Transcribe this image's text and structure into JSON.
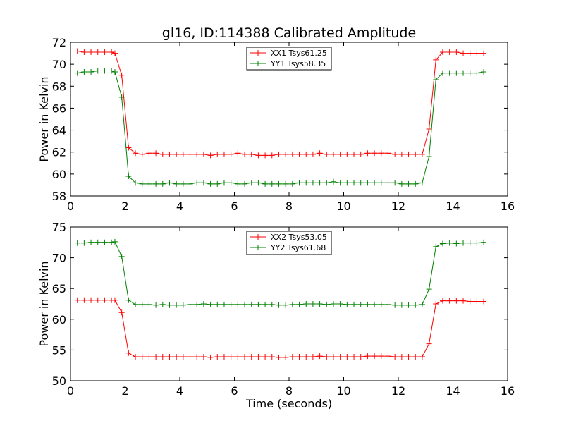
{
  "figure": {
    "title": "gl16, ID:114388 Calibrated Amplitude"
  },
  "chart_data": [
    {
      "type": "line",
      "title": "gl16, ID:114388 Calibrated Amplitude",
      "xlabel": "",
      "ylabel": "Power in Kelvin",
      "xlim": [
        0,
        16
      ],
      "ylim": [
        58,
        72
      ],
      "xticks": [
        0,
        2,
        4,
        6,
        8,
        10,
        12,
        14,
        16
      ],
      "yticks": [
        58,
        60,
        62,
        64,
        66,
        68,
        70,
        72
      ],
      "legend_position": "top-center",
      "x": [
        0.25,
        0.5,
        0.75,
        1.0,
        1.25,
        1.5,
        1.625,
        1.875,
        2.125,
        2.375,
        2.625,
        2.875,
        3.125,
        3.375,
        3.625,
        3.875,
        4.125,
        4.375,
        4.625,
        4.875,
        5.125,
        5.375,
        5.625,
        5.875,
        6.125,
        6.375,
        6.625,
        6.875,
        7.125,
        7.375,
        7.625,
        7.875,
        8.125,
        8.375,
        8.625,
        8.875,
        9.125,
        9.375,
        9.625,
        9.875,
        10.125,
        10.375,
        10.625,
        10.875,
        11.125,
        11.375,
        11.625,
        11.875,
        12.125,
        12.375,
        12.625,
        12.875,
        13.125,
        13.375,
        13.625,
        13.875,
        14.125,
        14.375,
        14.625,
        14.875,
        15.125
      ],
      "series": [
        {
          "name": "XX1 Tsys61.25",
          "color": "#ff0000",
          "values": [
            71.2,
            71.1,
            71.1,
            71.1,
            71.1,
            71.1,
            71.0,
            69.0,
            62.4,
            61.9,
            61.8,
            61.9,
            61.9,
            61.8,
            61.8,
            61.8,
            61.8,
            61.8,
            61.8,
            61.8,
            61.7,
            61.8,
            61.8,
            61.8,
            61.9,
            61.8,
            61.8,
            61.7,
            61.7,
            61.7,
            61.8,
            61.8,
            61.8,
            61.8,
            61.8,
            61.8,
            61.9,
            61.8,
            61.8,
            61.8,
            61.8,
            61.8,
            61.8,
            61.9,
            61.9,
            61.9,
            61.9,
            61.8,
            61.8,
            61.8,
            61.8,
            61.8,
            64.1,
            70.4,
            71.1,
            71.1,
            71.1,
            71.0,
            71.0,
            71.0,
            71.0
          ]
        },
        {
          "name": "YY1 Tsys58.35",
          "color": "#008000",
          "values": [
            69.2,
            69.3,
            69.3,
            69.4,
            69.4,
            69.4,
            69.3,
            67.0,
            59.8,
            59.2,
            59.1,
            59.1,
            59.1,
            59.1,
            59.2,
            59.1,
            59.1,
            59.1,
            59.2,
            59.2,
            59.1,
            59.1,
            59.2,
            59.2,
            59.1,
            59.1,
            59.2,
            59.2,
            59.1,
            59.1,
            59.1,
            59.1,
            59.1,
            59.2,
            59.2,
            59.2,
            59.2,
            59.2,
            59.3,
            59.2,
            59.2,
            59.2,
            59.2,
            59.2,
            59.2,
            59.2,
            59.2,
            59.2,
            59.1,
            59.1,
            59.1,
            59.2,
            61.6,
            68.6,
            69.2,
            69.2,
            69.2,
            69.2,
            69.2,
            69.2,
            69.3
          ]
        }
      ]
    },
    {
      "type": "line",
      "title": "",
      "xlabel": "Time (seconds)",
      "ylabel": "Power in Kelvin",
      "xlim": [
        0,
        16
      ],
      "ylim": [
        50,
        75
      ],
      "xticks": [
        0,
        2,
        4,
        6,
        8,
        10,
        12,
        14,
        16
      ],
      "yticks": [
        50,
        55,
        60,
        65,
        70,
        75
      ],
      "legend_position": "top-center",
      "x": [
        0.25,
        0.5,
        0.75,
        1.0,
        1.25,
        1.5,
        1.625,
        1.875,
        2.125,
        2.375,
        2.625,
        2.875,
        3.125,
        3.375,
        3.625,
        3.875,
        4.125,
        4.375,
        4.625,
        4.875,
        5.125,
        5.375,
        5.625,
        5.875,
        6.125,
        6.375,
        6.625,
        6.875,
        7.125,
        7.375,
        7.625,
        7.875,
        8.125,
        8.375,
        8.625,
        8.875,
        9.125,
        9.375,
        9.625,
        9.875,
        10.125,
        10.375,
        10.625,
        10.875,
        11.125,
        11.375,
        11.625,
        11.875,
        12.125,
        12.375,
        12.625,
        12.875,
        13.125,
        13.375,
        13.625,
        13.875,
        14.125,
        14.375,
        14.625,
        14.875,
        15.125
      ],
      "series": [
        {
          "name": "XX2 Tsys53.05",
          "color": "#ff0000",
          "values": [
            63.1,
            63.1,
            63.1,
            63.1,
            63.1,
            63.1,
            63.1,
            61.1,
            54.5,
            53.9,
            53.9,
            53.9,
            53.9,
            53.9,
            53.9,
            53.9,
            53.9,
            53.9,
            53.9,
            53.9,
            53.8,
            53.9,
            53.9,
            53.9,
            53.9,
            53.9,
            53.9,
            53.9,
            53.9,
            53.9,
            53.8,
            53.8,
            53.9,
            53.9,
            53.9,
            53.9,
            54.0,
            53.9,
            53.9,
            53.9,
            53.9,
            53.9,
            53.9,
            54.0,
            54.0,
            54.0,
            54.0,
            53.9,
            53.9,
            53.9,
            53.9,
            53.9,
            56.0,
            62.5,
            63.0,
            63.0,
            63.0,
            63.0,
            62.9,
            62.9,
            62.9
          ]
        },
        {
          "name": "YY2 Tsys61.68",
          "color": "#008000",
          "values": [
            72.4,
            72.4,
            72.5,
            72.5,
            72.5,
            72.5,
            72.6,
            70.2,
            63.1,
            62.4,
            62.4,
            62.4,
            62.3,
            62.4,
            62.3,
            62.3,
            62.3,
            62.4,
            62.4,
            62.5,
            62.4,
            62.4,
            62.4,
            62.4,
            62.4,
            62.4,
            62.4,
            62.4,
            62.4,
            62.4,
            62.3,
            62.3,
            62.4,
            62.4,
            62.5,
            62.5,
            62.5,
            62.4,
            62.5,
            62.5,
            62.4,
            62.4,
            62.4,
            62.4,
            62.4,
            62.4,
            62.4,
            62.3,
            62.3,
            62.3,
            62.3,
            62.4,
            64.9,
            71.8,
            72.3,
            72.4,
            72.3,
            72.4,
            72.4,
            72.4,
            72.5
          ]
        }
      ]
    }
  ]
}
